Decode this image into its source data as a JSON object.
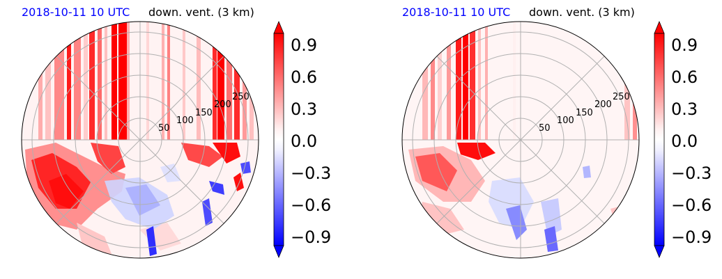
{
  "panels": [
    {
      "date": "2018-10-11 10 UTC",
      "title": "down. vent. (3 km)",
      "radial_labels": [
        "50",
        "100",
        "150",
        "200",
        "250"
      ],
      "colorbar_ticks": [
        "0.9",
        "0.6",
        "0.3",
        "0.0",
        "−0.3",
        "−0.6",
        "−0.9"
      ]
    },
    {
      "date": "2018-10-11 10 UTC",
      "title": "down. vent. (3 km)",
      "radial_labels": [
        "50",
        "100",
        "150",
        "200",
        "250"
      ],
      "colorbar_ticks": [
        "0.9",
        "0.6",
        "0.3",
        "0.0",
        "−0.3",
        "−0.6",
        "−0.9"
      ]
    }
  ],
  "chart_data": [
    {
      "type": "heatmap",
      "projection": "polar",
      "date": "2018-10-11 10 UTC",
      "title": "down. vent. (3 km)",
      "radial_ticks": [
        50,
        100,
        150,
        200,
        250
      ],
      "colorbar": {
        "min": -1.0,
        "max": 1.0,
        "ticks": [
          0.9,
          0.6,
          0.3,
          0.0,
          -0.3,
          -0.6,
          -0.9
        ],
        "cmap": "bwr",
        "extend": "both"
      }
    },
    {
      "type": "heatmap",
      "projection": "polar",
      "date": "2018-10-11 10 UTC",
      "title": "down. vent. (3 km)",
      "radial_ticks": [
        50,
        100,
        150,
        200,
        250
      ],
      "colorbar": {
        "min": -1.0,
        "max": 1.0,
        "ticks": [
          0.9,
          0.6,
          0.3,
          0.0,
          -0.3,
          -0.6,
          -0.9
        ],
        "cmap": "bwr",
        "extend": "both"
      }
    }
  ]
}
